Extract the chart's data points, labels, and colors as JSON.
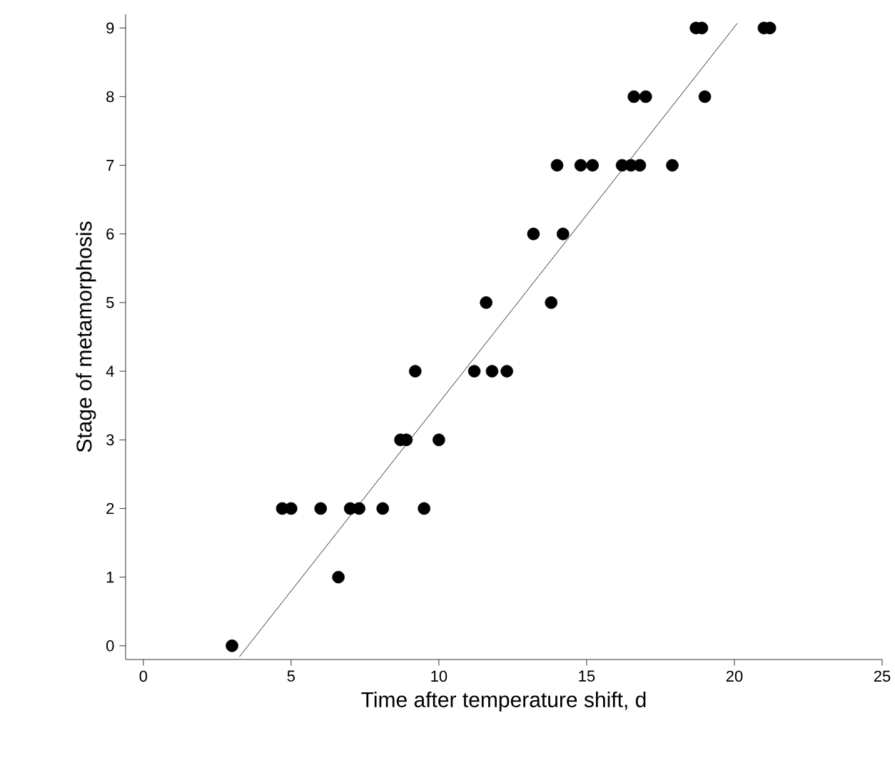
{
  "chart_data": {
    "type": "scatter",
    "xlabel": "Time after temperature shift, d",
    "ylabel": "Stage of metamorphosis",
    "xlim": [
      -0.6,
      25
    ],
    "ylim": [
      -0.2,
      9.2
    ],
    "xticks": [
      0,
      5,
      10,
      15,
      20,
      25
    ],
    "yticks": [
      0,
      1,
      2,
      3,
      4,
      5,
      6,
      7,
      8,
      9
    ],
    "grid": false,
    "series": [
      {
        "color": "#000000",
        "x": [
          3.0,
          4.7,
          5.0,
          6.0,
          6.6,
          7.0,
          7.3,
          8.1,
          9.5,
          8.7,
          8.9,
          10.0,
          9.2,
          11.2,
          11.8,
          12.3,
          11.6,
          13.8,
          13.2,
          14.2,
          14.0,
          14.8,
          15.2,
          16.2,
          16.5,
          16.8,
          17.9,
          16.6,
          17.0,
          19.0,
          18.7,
          18.9,
          21.0,
          21.2
        ],
        "values": [
          0,
          2,
          2,
          2,
          1,
          2,
          2,
          2,
          2,
          3,
          3,
          3,
          4,
          4,
          4,
          4,
          5,
          5,
          6,
          6,
          7,
          7,
          7,
          7,
          7,
          7,
          7,
          8,
          8,
          8,
          9,
          9,
          9,
          9
        ]
      },
      {
        "type": "line",
        "color": "#000000",
        "x": [
          3.25,
          20.1
        ],
        "values": [
          -0.16,
          9.07
        ]
      }
    ]
  }
}
